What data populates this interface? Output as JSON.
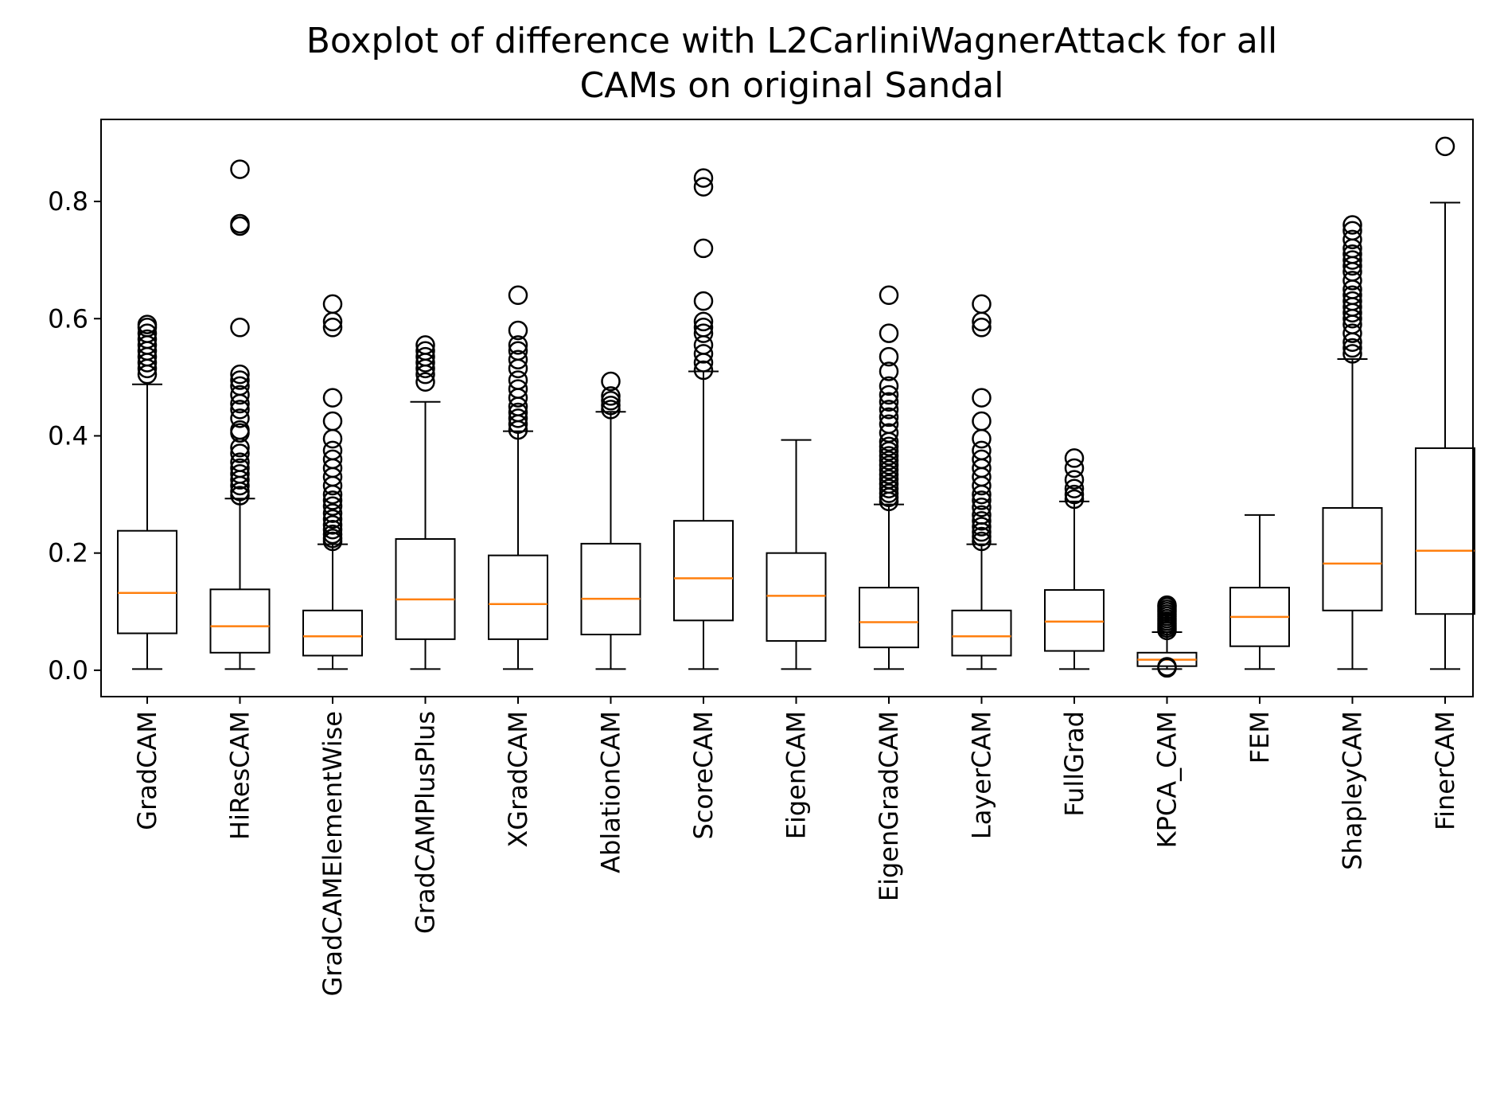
{
  "chart_data": {
    "type": "boxplot",
    "title_lines": [
      "Boxplot of difference with L2CarliniWagnerAttack for all",
      "CAMs on original Sandal"
    ],
    "xlabel": "",
    "ylabel": "",
    "ylim": [
      -0.045,
      0.94
    ],
    "yticks": [
      0.0,
      0.2,
      0.4,
      0.6,
      0.8
    ],
    "ytick_labels": [
      "0.0",
      "0.2",
      "0.4",
      "0.6",
      "0.8"
    ],
    "grid": false,
    "colors": {
      "box": "#000000",
      "median": "#ff7f0e",
      "flier": "#000000"
    },
    "categories": [
      "GradCAM",
      "HiResCAM",
      "GradCAMElementWise",
      "GradCAMPlusPlus",
      "XGradCAM",
      "AblationCAM",
      "ScoreCAM",
      "EigenCAM",
      "EigenGradCAM",
      "LayerCAM",
      "FullGrad",
      "KPCA_CAM",
      "FEM",
      "ShapleyCAM",
      "FinerCAM"
    ],
    "boxes": [
      {
        "whisker_low": 0.002,
        "q1": 0.063,
        "median": 0.132,
        "q3": 0.238,
        "whisker_high": 0.488,
        "fliers": [
          0.505,
          0.515,
          0.525,
          0.535,
          0.545,
          0.555,
          0.565,
          0.575,
          0.585,
          0.59
        ]
      },
      {
        "whisker_low": 0.002,
        "q1": 0.03,
        "median": 0.075,
        "q3": 0.138,
        "whisker_high": 0.293,
        "fliers": [
          0.298,
          0.305,
          0.315,
          0.325,
          0.335,
          0.345,
          0.355,
          0.37,
          0.38,
          0.405,
          0.41,
          0.43,
          0.445,
          0.455,
          0.47,
          0.485,
          0.495,
          0.505,
          0.585,
          0.758,
          0.762,
          0.855
        ]
      },
      {
        "whisker_low": 0.002,
        "q1": 0.025,
        "median": 0.058,
        "q3": 0.102,
        "whisker_high": 0.215,
        "fliers": [
          0.22,
          0.225,
          0.232,
          0.24,
          0.248,
          0.258,
          0.268,
          0.28,
          0.29,
          0.3,
          0.315,
          0.33,
          0.345,
          0.36,
          0.375,
          0.395,
          0.425,
          0.465,
          0.585,
          0.595,
          0.625
        ]
      },
      {
        "whisker_low": 0.002,
        "q1": 0.053,
        "median": 0.121,
        "q3": 0.224,
        "whisker_high": 0.458,
        "fliers": [
          0.492,
          0.505,
          0.515,
          0.525,
          0.535,
          0.545,
          0.555
        ]
      },
      {
        "whisker_low": 0.002,
        "q1": 0.053,
        "median": 0.113,
        "q3": 0.196,
        "whisker_high": 0.408,
        "fliers": [
          0.41,
          0.42,
          0.43,
          0.44,
          0.45,
          0.465,
          0.48,
          0.495,
          0.515,
          0.53,
          0.545,
          0.555,
          0.58,
          0.64
        ]
      },
      {
        "whisker_low": 0.002,
        "q1": 0.061,
        "median": 0.122,
        "q3": 0.216,
        "whisker_high": 0.441,
        "fliers": [
          0.445,
          0.452,
          0.46,
          0.468,
          0.493
        ]
      },
      {
        "whisker_low": 0.002,
        "q1": 0.085,
        "median": 0.157,
        "q3": 0.255,
        "whisker_high": 0.51,
        "fliers": [
          0.512,
          0.525,
          0.54,
          0.555,
          0.575,
          0.585,
          0.595,
          0.63,
          0.72,
          0.825,
          0.84
        ]
      },
      {
        "whisker_low": 0.002,
        "q1": 0.05,
        "median": 0.127,
        "q3": 0.2,
        "whisker_high": 0.393,
        "fliers": []
      },
      {
        "whisker_low": 0.002,
        "q1": 0.039,
        "median": 0.082,
        "q3": 0.141,
        "whisker_high": 0.283,
        "fliers": [
          0.288,
          0.295,
          0.302,
          0.31,
          0.318,
          0.326,
          0.334,
          0.342,
          0.35,
          0.358,
          0.366,
          0.374,
          0.382,
          0.39,
          0.405,
          0.42,
          0.432,
          0.445,
          0.458,
          0.47,
          0.485,
          0.51,
          0.535,
          0.575,
          0.64
        ]
      },
      {
        "whisker_low": 0.002,
        "q1": 0.025,
        "median": 0.058,
        "q3": 0.102,
        "whisker_high": 0.215,
        "fliers": [
          0.22,
          0.228,
          0.236,
          0.245,
          0.255,
          0.265,
          0.278,
          0.29,
          0.3,
          0.315,
          0.33,
          0.345,
          0.36,
          0.375,
          0.395,
          0.425,
          0.465,
          0.585,
          0.595,
          0.625
        ]
      },
      {
        "whisker_low": 0.002,
        "q1": 0.033,
        "median": 0.083,
        "q3": 0.137,
        "whisker_high": 0.288,
        "fliers": [
          0.292,
          0.3,
          0.31,
          0.325,
          0.345,
          0.362
        ]
      },
      {
        "whisker_low": 0.002,
        "q1": 0.007,
        "median": 0.018,
        "q3": 0.03,
        "whisker_high": 0.065,
        "fliers": [
          0.006,
          0.004,
          0.068,
          0.072,
          0.076,
          0.08,
          0.084,
          0.088,
          0.092,
          0.096,
          0.1,
          0.104,
          0.108,
          0.111
        ]
      },
      {
        "whisker_low": 0.002,
        "q1": 0.041,
        "median": 0.091,
        "q3": 0.141,
        "whisker_high": 0.265,
        "fliers": []
      },
      {
        "whisker_low": 0.002,
        "q1": 0.102,
        "median": 0.182,
        "q3": 0.277,
        "whisker_high": 0.531,
        "fliers": [
          0.54,
          0.55,
          0.56,
          0.575,
          0.59,
          0.6,
          0.61,
          0.62,
          0.63,
          0.64,
          0.65,
          0.665,
          0.68,
          0.69,
          0.7,
          0.71,
          0.72,
          0.735,
          0.75,
          0.76
        ]
      },
      {
        "whisker_low": 0.002,
        "q1": 0.096,
        "median": 0.204,
        "q3": 0.379,
        "whisker_high": 0.798,
        "fliers": [
          0.894
        ]
      }
    ]
  }
}
